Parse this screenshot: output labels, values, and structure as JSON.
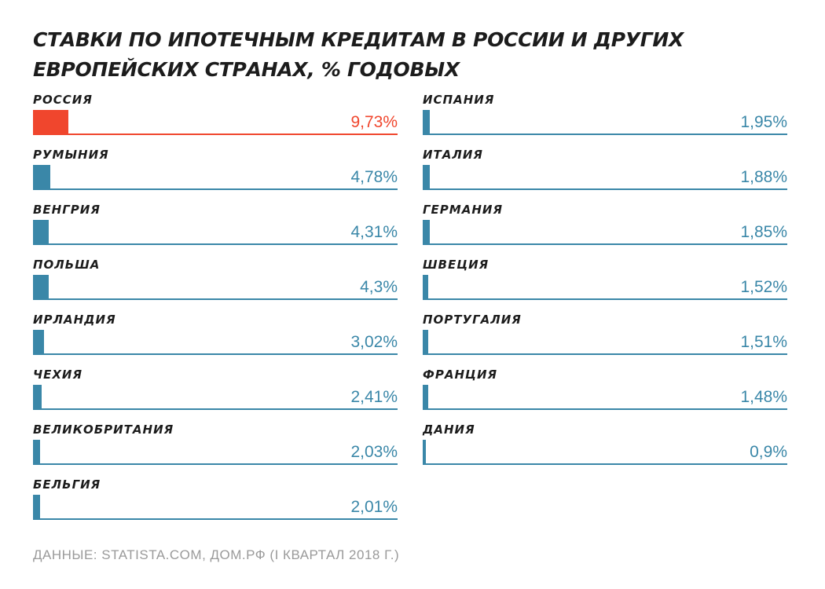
{
  "title": "СТАВКИ ПО ИПОТЕЧНЫМ КРЕДИТАМ В РОССИИ И ДРУГИХ ЕВРОПЕЙСКИХ СТРАНАХ, % ГОДОВЫХ",
  "source": "ДАННЫЕ: STATISTA.COM, ДОМ.РФ (I КВАРТАЛ 2018 Г.)",
  "colors": {
    "highlight": "#f0462d",
    "bar": "#3a87a8",
    "text": "#1c1c1c",
    "source_text": "#9a9a9a"
  },
  "chart_data": {
    "type": "bar",
    "orientation": "horizontal",
    "title": "СТАВКИ ПО ИПОТЕЧНЫМ КРЕДИТАМ В РОССИИ И ДРУГИХ ЕВРОПЕЙСКИХ СТРАНАХ, % ГОДОВЫХ",
    "xlim": [
      0,
      100
    ],
    "highlighted": "РОССИЯ",
    "columns": [
      {
        "categories": [
          "РОССИЯ",
          "РУМЫНИЯ",
          "ВЕНГРИЯ",
          "ПОЛЬША",
          "ИРЛАНДИЯ",
          "ЧЕХИЯ",
          "ВЕЛИКОБРИТАНИЯ",
          "БЕЛЬГИЯ"
        ],
        "values": [
          9.73,
          4.78,
          4.31,
          4.3,
          3.02,
          2.41,
          2.03,
          2.01
        ],
        "value_labels": [
          "9,73%",
          "4,78%",
          "4,31%",
          "4,3%",
          "3,02%",
          "2,41%",
          "2,03%",
          "2,01%"
        ]
      },
      {
        "categories": [
          "ИСПАНИЯ",
          "ИТАЛИЯ",
          "ГЕРМАНИЯ",
          "ШВЕЦИЯ",
          "ПОРТУГАЛИЯ",
          "ФРАНЦИЯ",
          "ДАНИЯ"
        ],
        "values": [
          1.95,
          1.88,
          1.85,
          1.52,
          1.51,
          1.48,
          0.9
        ],
        "value_labels": [
          "1,95%",
          "1,88%",
          "1,85%",
          "1,52%",
          "1,51%",
          "1,48%",
          "0,9%"
        ]
      }
    ]
  }
}
